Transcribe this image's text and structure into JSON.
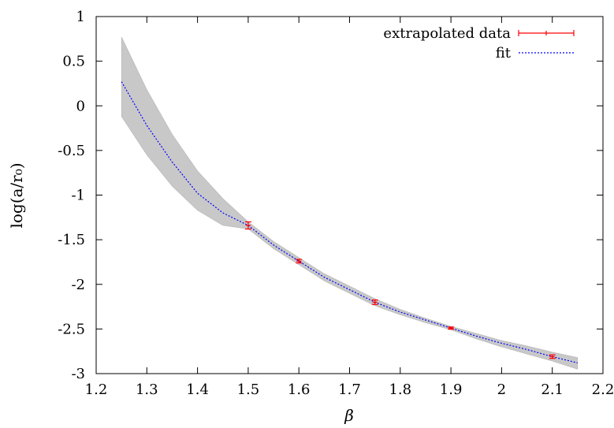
{
  "chart_data": {
    "type": "line",
    "xlabel": "β",
    "ylabel": "log(a/r₀)",
    "xlim": [
      1.2,
      2.2
    ],
    "ylim": [
      -3,
      1
    ],
    "xticks": [
      "1.2",
      "1.3",
      "1.4",
      "1.5",
      "1.6",
      "1.7",
      "1.8",
      "1.9",
      "2",
      "2.1",
      "2.2"
    ],
    "yticks": [
      "1",
      "0.5",
      "0",
      "-0.5",
      "-1",
      "-1.5",
      "-2",
      "-2.5",
      "-3"
    ],
    "grid": false,
    "legend_position": "top-right",
    "series": [
      {
        "name": "extrapolated data",
        "kind": "errorbar",
        "color": "#ff0000",
        "x": [
          1.5,
          1.6,
          1.75,
          1.9,
          2.1
        ],
        "y": [
          -1.34,
          -1.74,
          -2.2,
          -2.49,
          -2.81
        ],
        "yerr": [
          0.04,
          0.02,
          0.025,
          0.012,
          0.02
        ]
      },
      {
        "name": "fit",
        "kind": "line",
        "color": "#0000ff",
        "dash": "dotted",
        "x": [
          1.25,
          1.3,
          1.35,
          1.4,
          1.45,
          1.5,
          1.55,
          1.6,
          1.65,
          1.7,
          1.75,
          1.8,
          1.85,
          1.9,
          1.95,
          2.0,
          2.05,
          2.1,
          2.15
        ],
        "y": [
          0.27,
          -0.22,
          -0.63,
          -0.98,
          -1.2,
          -1.34,
          -1.56,
          -1.74,
          -1.92,
          -2.06,
          -2.2,
          -2.31,
          -2.4,
          -2.49,
          -2.58,
          -2.66,
          -2.73,
          -2.81,
          -2.88
        ]
      },
      {
        "name": "",
        "kind": "band",
        "color": "#c8c8c8",
        "x": [
          1.25,
          1.3,
          1.35,
          1.4,
          1.45,
          1.5,
          1.55,
          1.6,
          1.65,
          1.7,
          1.75,
          1.8,
          1.85,
          1.9,
          1.95,
          2.0,
          2.05,
          2.1,
          2.15
        ],
        "upper": [
          0.77,
          0.18,
          -0.32,
          -0.73,
          -1.04,
          -1.3,
          -1.52,
          -1.7,
          -1.88,
          -2.02,
          -2.16,
          -2.28,
          -2.38,
          -2.47,
          -2.55,
          -2.63,
          -2.69,
          -2.76,
          -2.82
        ],
        "lower": [
          -0.12,
          -0.55,
          -0.9,
          -1.17,
          -1.34,
          -1.38,
          -1.6,
          -1.78,
          -1.96,
          -2.1,
          -2.24,
          -2.34,
          -2.43,
          -2.51,
          -2.61,
          -2.7,
          -2.78,
          -2.86,
          -2.95
        ]
      }
    ]
  }
}
